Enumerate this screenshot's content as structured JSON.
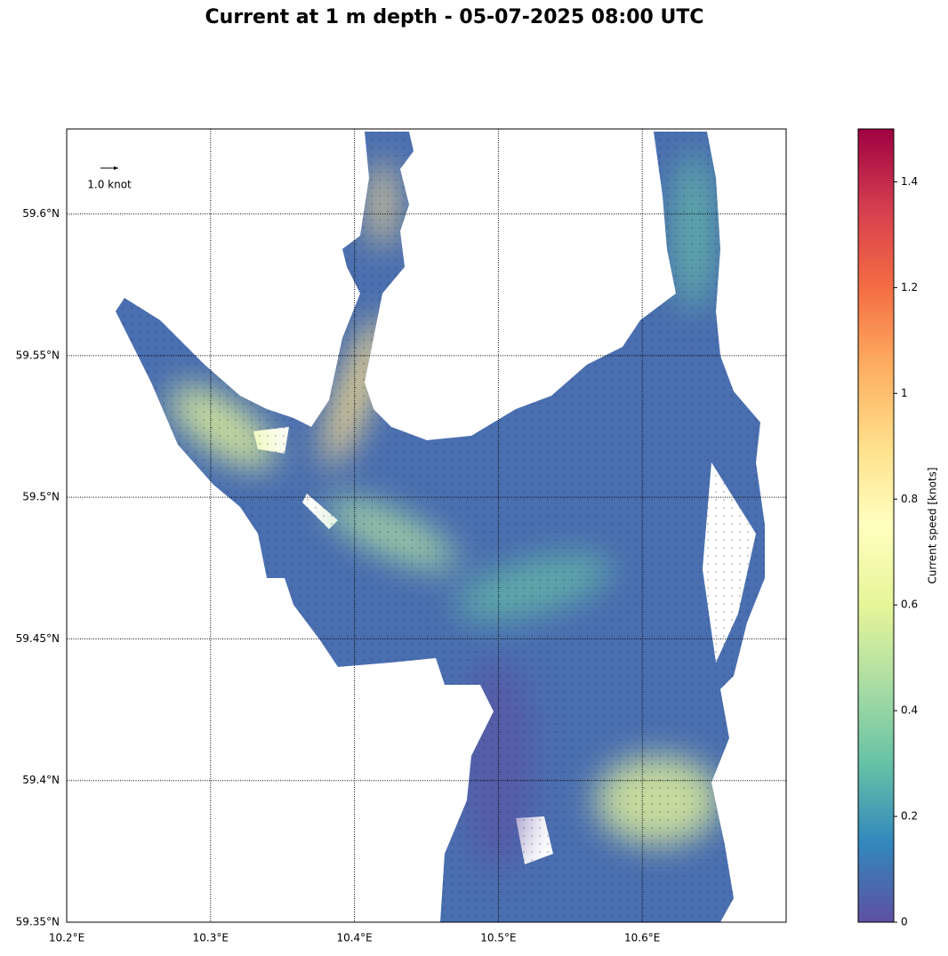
{
  "chart_data": {
    "type": "map",
    "title": "Current at 1 m depth - 05-07-2025 08:00 UTC",
    "xlim": [
      10.2,
      10.7
    ],
    "ylim": [
      59.35,
      59.63
    ],
    "xticks": [
      {
        "value": 10.2,
        "label": "10.2°E"
      },
      {
        "value": 10.3,
        "label": "10.3°E"
      },
      {
        "value": 10.4,
        "label": "10.4°E"
      },
      {
        "value": 10.5,
        "label": "10.5°E"
      },
      {
        "value": 10.6,
        "label": "10.6°E"
      }
    ],
    "yticks": [
      {
        "value": 59.35,
        "label": "59.35°N"
      },
      {
        "value": 59.4,
        "label": "59.4°N"
      },
      {
        "value": 59.45,
        "label": "59.45°N"
      },
      {
        "value": 59.5,
        "label": "59.5°N"
      },
      {
        "value": 59.55,
        "label": "59.55°N"
      },
      {
        "value": 59.6,
        "label": "59.6°N"
      }
    ],
    "grid": true,
    "quiver_key": {
      "value": 1.0,
      "label": "1.0 knot"
    },
    "colorbar": {
      "label": "Current speed [knots]",
      "lim": [
        0,
        1.5
      ],
      "ticks": [
        0,
        0.2,
        0.4,
        0.6,
        0.8,
        1.0,
        1.2,
        1.4
      ],
      "colormap": [
        "#5e4fa2",
        "#3288bd",
        "#66c2a5",
        "#abdda4",
        "#e6f598",
        "#ffffbf",
        "#fee08b",
        "#fdae61",
        "#f46d43",
        "#d53e4f",
        "#9e0142"
      ]
    }
  }
}
